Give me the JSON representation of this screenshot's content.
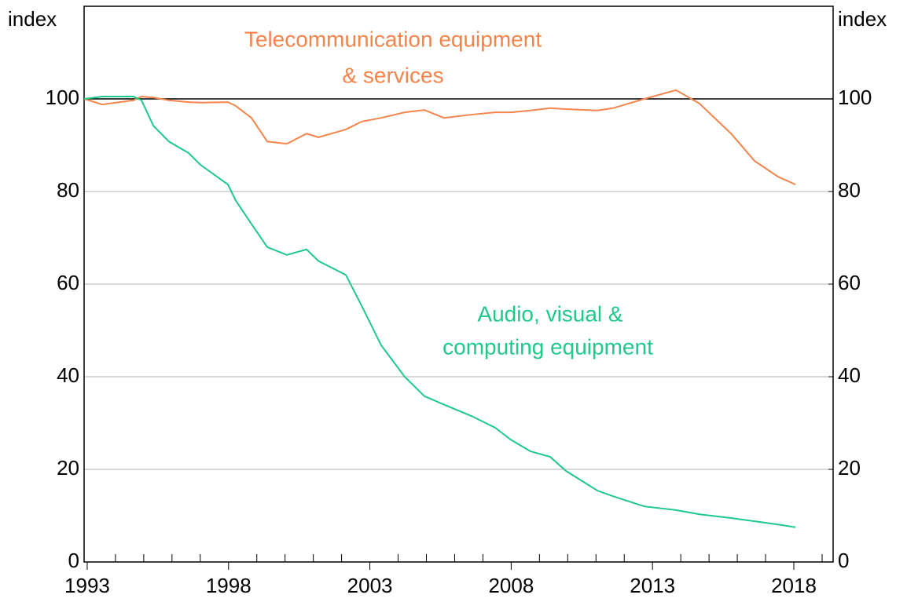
{
  "chart_data": {
    "type": "line",
    "y_label": "index",
    "y2_label": "index",
    "xlim": [
      1992.89,
      2019.39
    ],
    "xticks": [
      1993,
      1998,
      2003,
      2008,
      2013,
      2018
    ],
    "xminorticks": [
      1994,
      1995,
      1996,
      1997,
      1999,
      2000,
      2001,
      2002,
      2004,
      2005,
      2006,
      2007,
      2009,
      2010,
      2011,
      2012,
      2014,
      2015,
      2016,
      2017,
      2019
    ],
    "ylim": [
      0,
      120
    ],
    "yticks": [
      0,
      20,
      40,
      60,
      80,
      100
    ],
    "y2lim": [
      0,
      120
    ],
    "y2ticks": [
      0,
      20,
      40,
      60,
      80,
      100
    ],
    "reference_line": 100,
    "grid": true,
    "x": [
      1992.89,
      1993.53,
      1994.64,
      1994.92,
      1995.34,
      1995.89,
      1996.59,
      1997.0,
      1997.98,
      1998.25,
      1998.81,
      1999.37,
      2000.06,
      2000.76,
      2001.18,
      2002.15,
      2002.71,
      2003.4,
      2004.23,
      2004.93,
      2005.62,
      2006.6,
      2007.43,
      2007.99,
      2008.68,
      2009.38,
      2009.93,
      2011.05,
      2011.6,
      2012.71,
      2013.83,
      2014.66,
      2015.78,
      2016.61,
      2017.44,
      2018.06
    ],
    "series": [
      {
        "name": "Telecommunication equipment & services",
        "color": "#f4844a",
        "values": [
          100,
          98.8,
          99.7,
          100.5,
          100.3,
          99.7,
          99.3,
          99.2,
          99.3,
          98.5,
          95.9,
          90.8,
          90.3,
          92.5,
          91.7,
          93.4,
          95.1,
          95.9,
          97.1,
          97.6,
          95.9,
          96.6,
          97.1,
          97.1,
          97.5,
          98,
          97.8,
          97.5,
          98,
          100,
          101.9,
          99,
          92.5,
          86.6,
          83.2,
          81.5
        ]
      },
      {
        "name": "Audio, visual & computing equipment",
        "color": "#1ec98a",
        "values": [
          100,
          100.5,
          100.5,
          99.7,
          94.2,
          90.8,
          88.3,
          85.8,
          81.5,
          78.1,
          73,
          68,
          66.3,
          67.5,
          65,
          62,
          55.3,
          46.8,
          40,
          35.8,
          34,
          31.5,
          29,
          26.4,
          23.9,
          22.7,
          19.7,
          15.4,
          14.2,
          12,
          11.2,
          10.3,
          9.5,
          8.8,
          8.1,
          7.5
        ]
      }
    ],
    "annotations": [
      {
        "text": "Telecommunication equipment",
        "series": 0
      },
      {
        "text": "& services",
        "series": 0
      },
      {
        "text": "Audio, visual &",
        "series": 1
      },
      {
        "text": "computing equipment",
        "series": 1
      }
    ]
  }
}
